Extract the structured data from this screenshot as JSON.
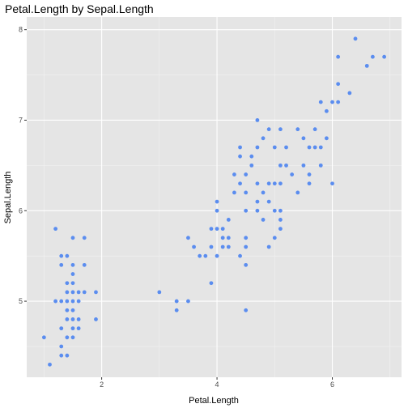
{
  "chart_data": {
    "type": "scatter",
    "title": "Petal.Length by Sepal.Length",
    "xlabel": "Petal.Length",
    "ylabel": "Sepal.Length",
    "xlim": [
      0.7,
      7.2
    ],
    "ylim": [
      4.16,
      8.14
    ],
    "x_ticks": [
      2,
      4,
      6
    ],
    "y_ticks": [
      5,
      6,
      7,
      8
    ],
    "grid": true,
    "point_color": "#5B8DEF",
    "panel_background": "#E5E5E5",
    "points": [
      [
        1.0,
        4.6
      ],
      [
        1.1,
        4.3
      ],
      [
        1.2,
        5.8
      ],
      [
        1.2,
        5.0
      ],
      [
        1.3,
        5.4
      ],
      [
        1.3,
        5.0
      ],
      [
        1.3,
        5.5
      ],
      [
        1.3,
        4.7
      ],
      [
        1.3,
        4.4
      ],
      [
        1.3,
        4.5
      ],
      [
        1.4,
        5.5
      ],
      [
        1.4,
        5.2
      ],
      [
        1.4,
        5.1
      ],
      [
        1.4,
        5.0
      ],
      [
        1.4,
        4.9
      ],
      [
        1.4,
        4.8
      ],
      [
        1.4,
        4.6
      ],
      [
        1.4,
        4.4
      ],
      [
        1.5,
        5.7
      ],
      [
        1.5,
        5.4
      ],
      [
        1.5,
        5.3
      ],
      [
        1.5,
        5.2
      ],
      [
        1.5,
        5.1
      ],
      [
        1.5,
        5.0
      ],
      [
        1.5,
        4.9
      ],
      [
        1.5,
        4.8
      ],
      [
        1.5,
        4.7
      ],
      [
        1.5,
        4.6
      ],
      [
        1.6,
        5.1
      ],
      [
        1.6,
        5.0
      ],
      [
        1.6,
        4.8
      ],
      [
        1.6,
        4.7
      ],
      [
        1.7,
        5.7
      ],
      [
        1.7,
        5.4
      ],
      [
        1.7,
        5.1
      ],
      [
        1.9,
        5.1
      ],
      [
        1.9,
        4.8
      ],
      [
        3.0,
        5.1
      ],
      [
        3.3,
        5.0
      ],
      [
        3.3,
        4.9
      ],
      [
        3.5,
        5.7
      ],
      [
        3.5,
        5.0
      ],
      [
        3.6,
        5.6
      ],
      [
        3.7,
        5.5
      ],
      [
        3.8,
        5.5
      ],
      [
        3.9,
        5.8
      ],
      [
        3.9,
        5.6
      ],
      [
        3.9,
        5.2
      ],
      [
        4.0,
        6.1
      ],
      [
        4.0,
        6.0
      ],
      [
        4.0,
        5.8
      ],
      [
        4.0,
        5.5
      ],
      [
        4.1,
        5.8
      ],
      [
        4.1,
        5.7
      ],
      [
        4.1,
        5.6
      ],
      [
        4.2,
        5.9
      ],
      [
        4.2,
        5.7
      ],
      [
        4.2,
        5.6
      ],
      [
        4.3,
        6.2
      ],
      [
        4.3,
        6.4
      ],
      [
        4.4,
        6.6
      ],
      [
        4.4,
        6.7
      ],
      [
        4.4,
        6.3
      ],
      [
        4.4,
        5.5
      ],
      [
        4.5,
        6.4
      ],
      [
        4.5,
        6.2
      ],
      [
        4.5,
        6.0
      ],
      [
        4.5,
        5.7
      ],
      [
        4.5,
        5.6
      ],
      [
        4.5,
        5.4
      ],
      [
        4.5,
        4.9
      ],
      [
        4.6,
        6.5
      ],
      [
        4.6,
        6.6
      ],
      [
        4.7,
        7.0
      ],
      [
        4.7,
        6.7
      ],
      [
        4.7,
        6.3
      ],
      [
        4.7,
        6.1
      ],
      [
        4.7,
        6.0
      ],
      [
        4.8,
        6.8
      ],
      [
        4.8,
        6.2
      ],
      [
        4.8,
        5.9
      ],
      [
        4.9,
        6.9
      ],
      [
        4.9,
        6.3
      ],
      [
        4.9,
        6.1
      ],
      [
        4.9,
        5.6
      ],
      [
        5.0,
        6.7
      ],
      [
        5.0,
        6.3
      ],
      [
        5.0,
        6.0
      ],
      [
        5.0,
        5.7
      ],
      [
        5.1,
        6.9
      ],
      [
        5.1,
        6.5
      ],
      [
        5.1,
        6.3
      ],
      [
        5.1,
        6.0
      ],
      [
        5.1,
        5.9
      ],
      [
        5.1,
        5.8
      ],
      [
        5.2,
        6.7
      ],
      [
        5.2,
        6.5
      ],
      [
        5.3,
        6.4
      ],
      [
        5.4,
        6.9
      ],
      [
        5.4,
        6.2
      ],
      [
        5.5,
        6.8
      ],
      [
        5.5,
        6.5
      ],
      [
        5.6,
        6.7
      ],
      [
        5.6,
        6.4
      ],
      [
        5.6,
        6.3
      ],
      [
        5.7,
        6.9
      ],
      [
        5.7,
        6.7
      ],
      [
        5.8,
        7.2
      ],
      [
        5.8,
        6.7
      ],
      [
        5.8,
        6.5
      ],
      [
        5.9,
        7.1
      ],
      [
        5.9,
        6.8
      ],
      [
        6.0,
        7.2
      ],
      [
        6.0,
        6.3
      ],
      [
        6.1,
        7.7
      ],
      [
        6.1,
        7.4
      ],
      [
        6.1,
        7.2
      ],
      [
        6.3,
        7.3
      ],
      [
        6.4,
        7.9
      ],
      [
        6.6,
        7.6
      ],
      [
        6.7,
        7.7
      ],
      [
        6.9,
        7.7
      ]
    ]
  }
}
